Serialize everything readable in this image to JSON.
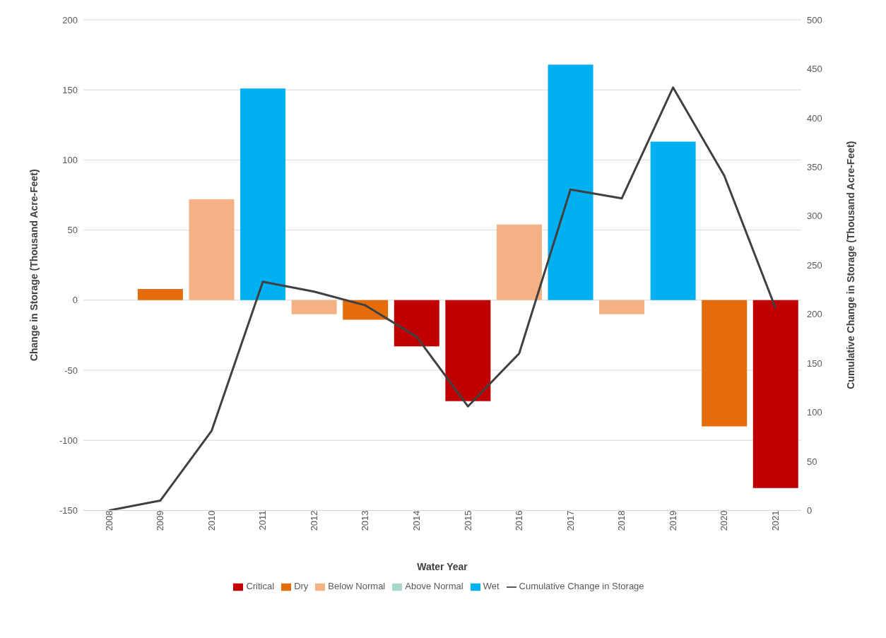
{
  "chart_data": {
    "type": "bar",
    "stacked": true,
    "xlabel": "Water Year",
    "ylabel": "Change in Storage (Thousand Acre-Feet)",
    "y2label": "Cumulative Change in Storage (Thousand Acre-Feet)",
    "categories": [
      "2008",
      "2009",
      "2010",
      "2011",
      "2012",
      "2013",
      "2014",
      "2015",
      "2016",
      "2017",
      "2018",
      "2019",
      "2020",
      "2021"
    ],
    "series": [
      {
        "name": "Critical",
        "color": "#c00000",
        "values": [
          null,
          null,
          null,
          null,
          null,
          null,
          -33,
          -72,
          null,
          null,
          null,
          null,
          null,
          -134
        ]
      },
      {
        "name": "Dry",
        "color": "#e46c0a",
        "values": [
          null,
          8,
          null,
          null,
          null,
          -14,
          null,
          null,
          null,
          null,
          null,
          null,
          -90,
          null
        ]
      },
      {
        "name": "Below Normal",
        "color": "#f4b183",
        "values": [
          null,
          null,
          72,
          null,
          -10,
          null,
          null,
          null,
          54,
          null,
          -10,
          null,
          null,
          null
        ]
      },
      {
        "name": "Above Normal",
        "color": "#a9d6cf",
        "values": [
          0,
          null,
          null,
          null,
          null,
          null,
          null,
          null,
          null,
          null,
          null,
          null,
          null,
          null
        ]
      },
      {
        "name": "Wet",
        "color": "#00b0f0",
        "values": [
          null,
          null,
          null,
          151,
          null,
          null,
          null,
          null,
          null,
          168,
          null,
          113,
          null,
          null
        ]
      },
      {
        "name": "Cumulative Change in Storage",
        "type": "line",
        "axis": "y2",
        "color": "#404040",
        "values": [
          0,
          10,
          81,
          233,
          223,
          209,
          177,
          106,
          160,
          327,
          318,
          431,
          341,
          206
        ]
      }
    ],
    "ylim": [
      -150,
      200
    ],
    "yticks": [
      -150,
      -100,
      -50,
      0,
      50,
      100,
      150,
      200
    ],
    "y2lim": [
      0,
      500
    ],
    "y2ticks": [
      0,
      50,
      100,
      150,
      200,
      250,
      300,
      350,
      400,
      450,
      500
    ],
    "grid": "y",
    "legend": "bottom"
  }
}
